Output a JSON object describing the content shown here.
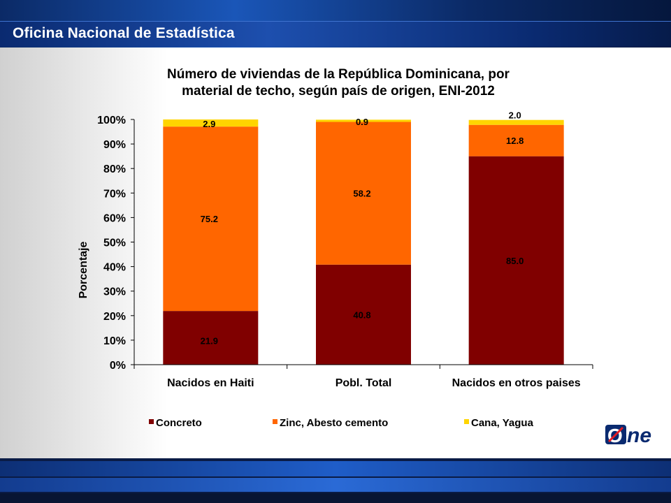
{
  "header": {
    "title": "Oficina Nacional de Estadística"
  },
  "logo": {
    "text": "One",
    "slash_letter": "O",
    "rest": "ne"
  },
  "colors": {
    "concreto": "#800000",
    "zinc": "#ff6600",
    "cana": "#ffd500"
  },
  "chart_data": {
    "type": "bar",
    "stacked": true,
    "title": "Número de viviendas de la República Dominicana, por material de techo, según país de origen, ENI-2012",
    "title_lines": [
      "Número de viviendas de la República Dominicana, por",
      "material de techo, según país de origen, ENI-2012"
    ],
    "ylabel": "Porcentaje",
    "xlabel": "",
    "ylim": [
      0,
      100
    ],
    "yticks": [
      "0%",
      "10%",
      "20%",
      "30%",
      "40%",
      "50%",
      "60%",
      "70%",
      "80%",
      "90%",
      "100%"
    ],
    "categories": [
      "Nacidos en Haiti",
      "Pobl. Total",
      "Nacidos en otros paises"
    ],
    "series": [
      {
        "name": "Concreto",
        "values": [
          21.9,
          40.8,
          85.0
        ],
        "labels": [
          "21.9",
          "40.8",
          "85.0"
        ],
        "color": "#800000"
      },
      {
        "name": "Zinc, Abesto cemento",
        "values": [
          75.2,
          58.2,
          12.8
        ],
        "labels": [
          "75.2",
          "58.2",
          "12.8"
        ],
        "color": "#ff6600"
      },
      {
        "name": "Cana, Yagua",
        "values": [
          2.9,
          0.9,
          2.0
        ],
        "labels": [
          "2.9",
          "0.9",
          "2.0"
        ],
        "color": "#ffd500"
      }
    ],
    "legend_position": "bottom",
    "grid": false
  }
}
